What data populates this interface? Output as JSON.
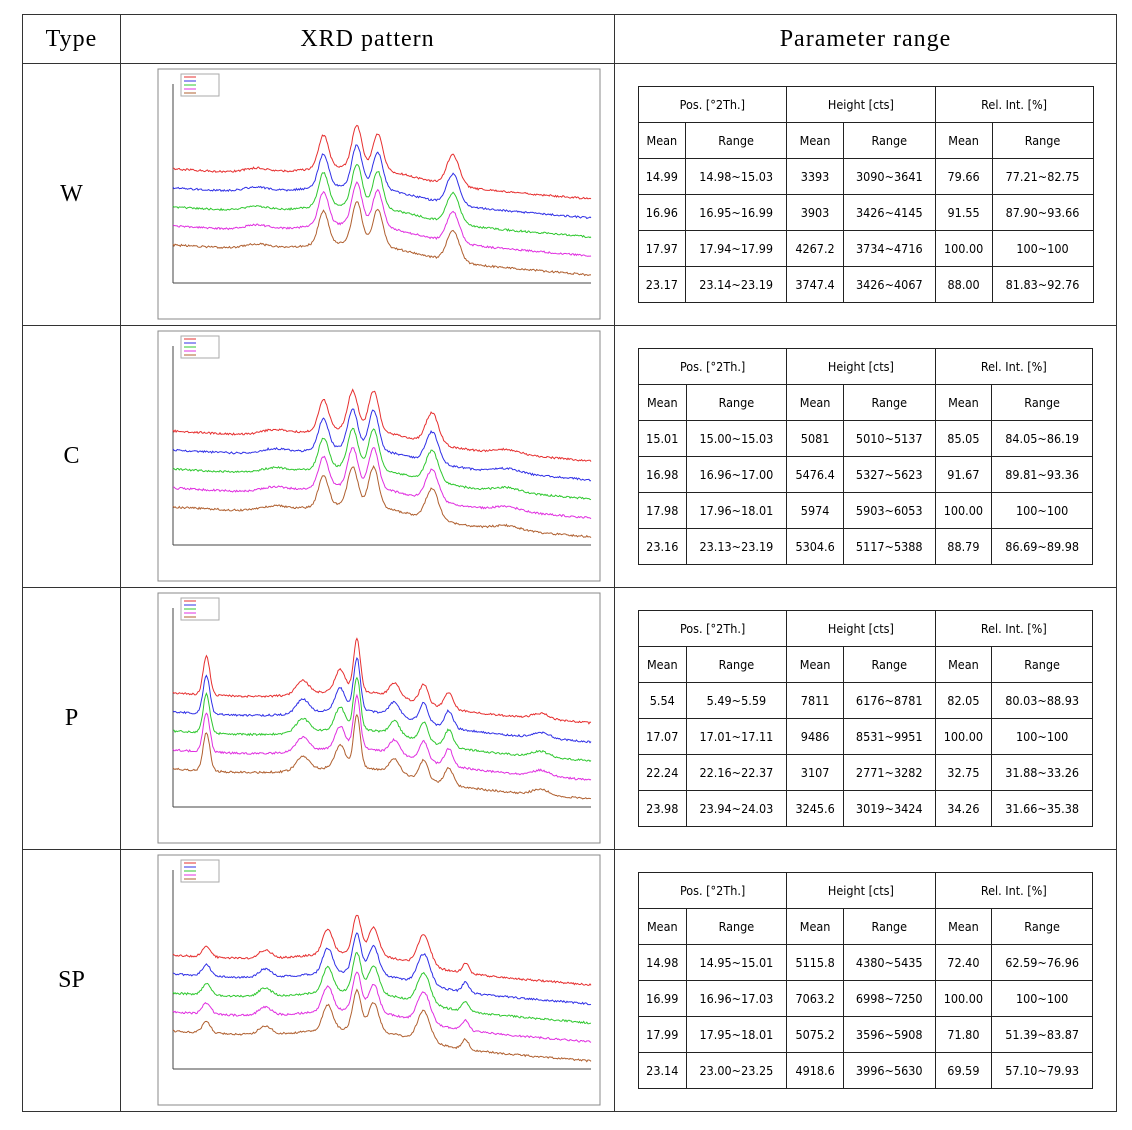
{
  "header": [
    "Type",
    "XRD pattern",
    "Parameter range"
  ],
  "rows": [
    {
      "type": "W",
      "groups": [
        "Pos. [°2Th.]",
        "Height [cts]",
        "Rel. Int. [%]"
      ],
      "subheaders": [
        "Mean",
        "Range",
        "Mean",
        "Range",
        "Mean",
        "Range"
      ],
      "data": [
        [
          "14.99",
          "14.98~15.03",
          "3393",
          "3090~3641",
          "79.66",
          "77.21~82.75"
        ],
        [
          "16.96",
          "16.95~16.99",
          "3903",
          "3426~4145",
          "91.55",
          "87.90~93.66"
        ],
        [
          "17.97",
          "17.94~17.99",
          "4267.2",
          "3734~4716",
          "100.00",
          "100~100"
        ],
        [
          "23.17",
          "23.14~23.19",
          "3747.4",
          "3426~4067",
          "88.00",
          "81.83~92.76"
        ]
      ]
    },
    {
      "type": "C",
      "groups": [
        "Pos. [°2Th.]",
        "Height [cts]",
        "Rel. Int. [%]"
      ],
      "subheaders": [
        "Mean",
        "Range",
        "Mean",
        "Range",
        "Mean",
        "Range"
      ],
      "data": [
        [
          "15.01",
          "15.00~15.03",
          "5081",
          "5010~5137",
          "85.05",
          "84.05~86.19"
        ],
        [
          "16.98",
          "16.96~17.00",
          "5476.4",
          "5327~5623",
          "91.67",
          "89.81~93.36"
        ],
        [
          "17.98",
          "17.96~18.01",
          "5974",
          "5903~6053",
          "100.00",
          "100~100"
        ],
        [
          "23.16",
          "23.13~23.19",
          "5304.6",
          "5117~5388",
          "88.79",
          "86.69~89.98"
        ]
      ]
    },
    {
      "type": "P",
      "groups": [
        "Pos. [°2Th.]",
        "Height [cts]",
        "Rel. Int. [%]"
      ],
      "subheaders": [
        "Mean",
        "Range",
        "Mean",
        "Range",
        "Mean",
        "Range"
      ],
      "data": [
        [
          "5.54",
          "5.49~5.59",
          "7811",
          "6176~8781",
          "82.05",
          "80.03~88.93"
        ],
        [
          "17.07",
          "17.01~17.11",
          "9486",
          "8531~9951",
          "100.00",
          "100~100"
        ],
        [
          "22.24",
          "22.16~22.37",
          "3107",
          "2771~3282",
          "32.75",
          "31.88~33.26"
        ],
        [
          "23.98",
          "23.94~24.03",
          "3245.6",
          "3019~3424",
          "34.26",
          "31.66~35.38"
        ]
      ]
    },
    {
      "type": "SP",
      "groups": [
        "Pos. [°2Th.]",
        "Height [cts]",
        "Rel. Int. [%]"
      ],
      "subheaders": [
        "Mean",
        "Range",
        "Mean",
        "Range",
        "Mean",
        "Range"
      ],
      "data": [
        [
          "14.98",
          "14.95~15.01",
          "5115.8",
          "4380~5435",
          "72.40",
          "62.59~76.96"
        ],
        [
          "16.99",
          "16.96~17.03",
          "7063.2",
          "6998~7250",
          "100.00",
          "100~100"
        ],
        [
          "17.99",
          "17.95~18.01",
          "5075.2",
          "3596~5908",
          "71.80",
          "51.39~83.87"
        ],
        [
          "23.14",
          "23.00~23.25",
          "4918.6",
          "3996~5630",
          "69.59",
          "57.10~79.93"
        ]
      ]
    }
  ]
}
